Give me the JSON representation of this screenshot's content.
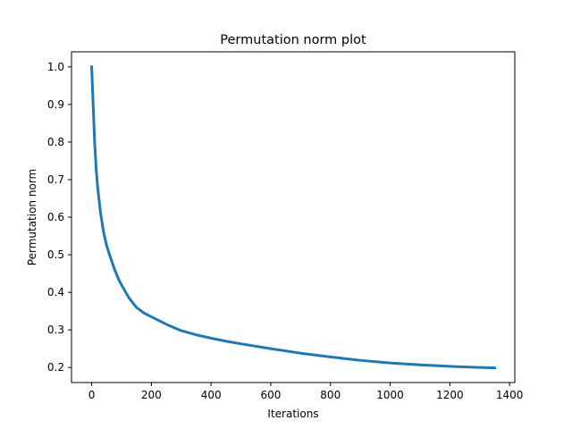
{
  "chart_data": {
    "type": "line",
    "title": "Permutation norm plot",
    "xlabel": "Iterations",
    "ylabel": "Permutation norm",
    "xlim": [
      -67.5,
      1417.5
    ],
    "ylim": [
      0.16,
      1.04
    ],
    "x_ticks": [
      0,
      200,
      400,
      600,
      800,
      1000,
      1200,
      1400
    ],
    "y_ticks": [
      0.2,
      0.3,
      0.4,
      0.5,
      0.6,
      0.7,
      0.8,
      0.9,
      1.0
    ],
    "x_tick_labels": [
      "0",
      "200",
      "400",
      "600",
      "800",
      "1000",
      "1200",
      "1400"
    ],
    "y_tick_labels": [
      "0.2",
      "0.3",
      "0.4",
      "0.5",
      "0.6",
      "0.7",
      "0.8",
      "0.9",
      "1.0"
    ],
    "grid": false,
    "legend": "none",
    "series": [
      {
        "color": "#1f77b4",
        "x": [
          0,
          5,
          10,
          15,
          20,
          30,
          40,
          50,
          60,
          75,
          90,
          100,
          125,
          150,
          175,
          200,
          250,
          300,
          350,
          400,
          450,
          500,
          600,
          700,
          800,
          900,
          1000,
          1100,
          1200,
          1300,
          1350
        ],
        "y": [
          1.0,
          0.9,
          0.8,
          0.73,
          0.68,
          0.61,
          0.56,
          0.525,
          0.5,
          0.465,
          0.435,
          0.42,
          0.385,
          0.36,
          0.345,
          0.335,
          0.315,
          0.298,
          0.287,
          0.278,
          0.27,
          0.263,
          0.25,
          0.238,
          0.228,
          0.219,
          0.212,
          0.207,
          0.203,
          0.2,
          0.199
        ]
      }
    ]
  }
}
